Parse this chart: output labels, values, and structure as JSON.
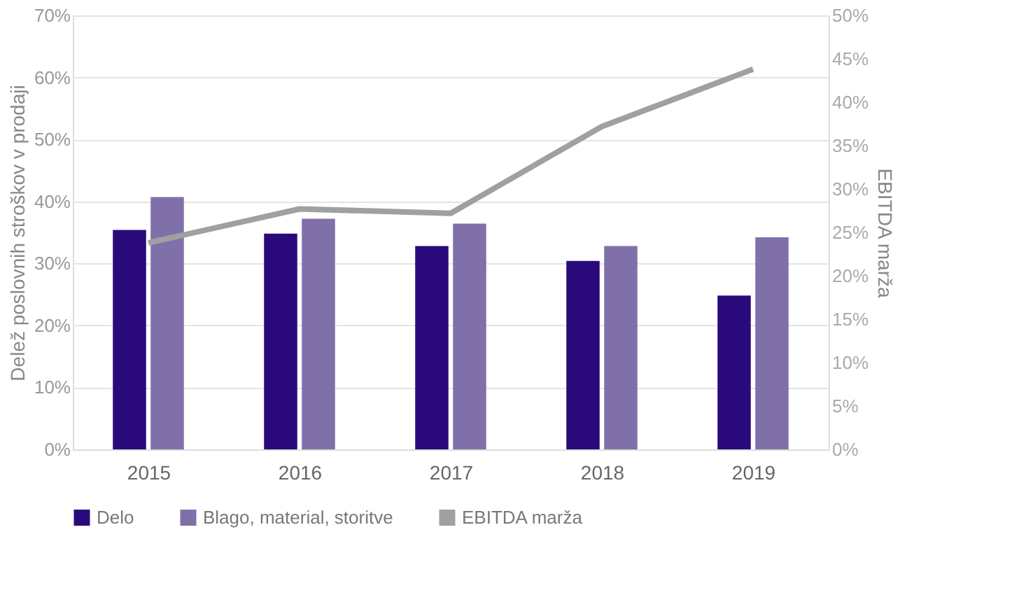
{
  "chart_data": {
    "type": "bar",
    "ylabel": "Delež poslovnih stroškov v prodaji",
    "y2label": "EBITDA marža",
    "categories": [
      "2015",
      "2016",
      "2017",
      "2018",
      "2019"
    ],
    "series": [
      {
        "name": "Delo",
        "color": "#2a0a7a",
        "values": [
          35.4,
          34.8,
          32.8,
          30.4,
          24.8
        ]
      },
      {
        "name": "Blago, material, storitve",
        "color": "#8070aa",
        "values": [
          40.7,
          37.2,
          36.4,
          32.8,
          34.2
        ]
      },
      {
        "name": "EBITDA marža",
        "color": "#a0a0a0",
        "type": "line",
        "axis": "y2",
        "values": [
          23.8,
          27.7,
          27.2,
          37.2,
          43.8
        ]
      }
    ],
    "ylim": [
      0,
      70
    ],
    "yticks": [
      {
        "value": 0,
        "label": "0%"
      },
      {
        "value": 10,
        "label": "10%"
      },
      {
        "value": 20,
        "label": "20%"
      },
      {
        "value": 30,
        "label": "30%"
      },
      {
        "value": 40,
        "label": "40%"
      },
      {
        "value": 50,
        "label": "50%"
      },
      {
        "value": 60,
        "label": "60%"
      },
      {
        "value": 70,
        "label": "70%"
      }
    ],
    "y2lim": [
      0,
      50
    ],
    "y2ticks": [
      {
        "value": 0,
        "label": "0%"
      },
      {
        "value": 5,
        "label": "5%"
      },
      {
        "value": 10,
        "label": "10%"
      },
      {
        "value": 15,
        "label": "15%"
      },
      {
        "value": 20,
        "label": "20%"
      },
      {
        "value": 25,
        "label": "25%"
      },
      {
        "value": 30,
        "label": "30%"
      },
      {
        "value": 35,
        "label": "35%"
      },
      {
        "value": 40,
        "label": "40%"
      },
      {
        "value": 45,
        "label": "45%"
      },
      {
        "value": 50,
        "label": "50%"
      }
    ],
    "grid": "y",
    "legend": "bottom"
  }
}
